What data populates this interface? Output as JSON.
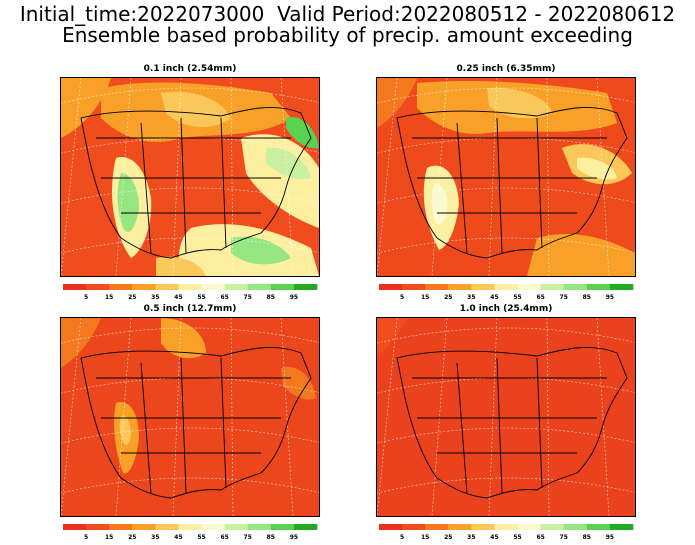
{
  "header": {
    "line1": "Initial_time:2022073000  Valid Period:2022080512 - 2022080612",
    "line2": "Ensemble based probability of precip. amount exceeding"
  },
  "colorbar": {
    "labels": [
      "5",
      "15",
      "25",
      "35",
      "45",
      "55",
      "65",
      "75",
      "85",
      "95"
    ],
    "colors": [
      "#e8321e",
      "#f04d1e",
      "#f4781e",
      "#f8a028",
      "#fac85a",
      "#fcf0a0",
      "#fafad2",
      "#c8f0a0",
      "#96e682",
      "#5ad250",
      "#22aa22"
    ]
  },
  "panels": [
    {
      "title": "0.1 inch (2.54mm)",
      "base_color": "#f04d1e"
    },
    {
      "title": "0.25 inch (6.35mm)",
      "base_color": "#ee4a1c"
    },
    {
      "title": "0.5 inch (12.7mm)",
      "base_color": "#ec461c"
    },
    {
      "title": "1.0 inch (25.4mm)",
      "base_color": "#ea421c"
    }
  ]
}
